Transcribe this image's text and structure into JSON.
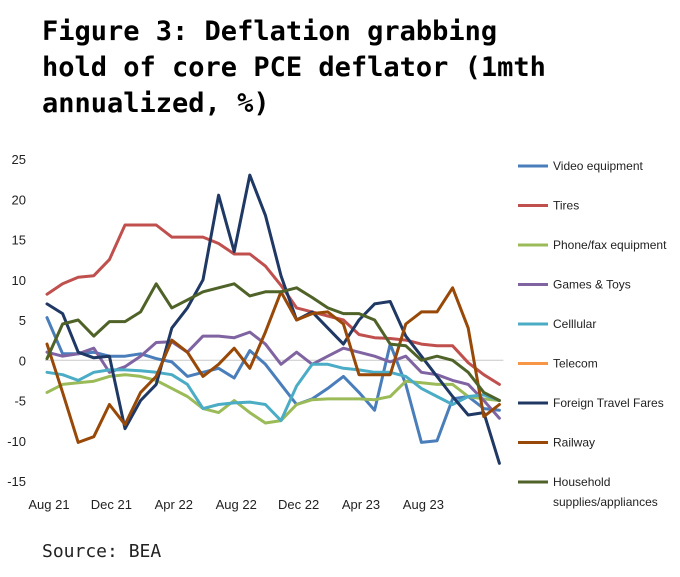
{
  "title": "Figure 3: Deflation grabbing\nhold of core PCE deflator (1mth\nannualized, %)",
  "source": "Source: BEA",
  "chart_data": {
    "type": "line",
    "title": "Figure 3: Deflation grabbing hold of core PCE deflator (1mth annualized, %)",
    "xlabel": "",
    "ylabel": "",
    "ylim": [
      -15,
      25
    ],
    "yticks": [
      25,
      20,
      15,
      10,
      5,
      0,
      -5,
      -10,
      -15
    ],
    "x_tick_labels": [
      "Aug 21",
      "Dec 21",
      "Apr 22",
      "Aug 22",
      "Dec 22",
      "Apr 23",
      "Aug 23"
    ],
    "x_tick_index": [
      0,
      4,
      8,
      12,
      16,
      20,
      24
    ],
    "n_points": 30,
    "grid": false,
    "legend_position": "right",
    "series": [
      {
        "name": "Video equipment",
        "color": "#4a7ebb",
        "values": [
          5.3,
          0.8,
          0.8,
          1.0,
          0.5,
          0.5,
          0.8,
          0.2,
          -0.2,
          -2.0,
          -1.5,
          -1.0,
          -2.2,
          1.2,
          -0.5,
          -3.0,
          -5.5,
          -4.8,
          -3.5,
          -2.0,
          -4.0,
          -6.2,
          2.0,
          -3.0,
          -10.2,
          -10.0,
          -4.8,
          -4.5,
          -6.0,
          -6.2
        ]
      },
      {
        "name": "Tires",
        "color": "#c0504d",
        "values": [
          8.2,
          9.5,
          10.3,
          10.5,
          12.5,
          16.8,
          16.8,
          16.8,
          15.3,
          15.3,
          15.3,
          14.5,
          13.2,
          13.2,
          11.7,
          9.3,
          6.5,
          6.0,
          5.5,
          5.0,
          3.2,
          2.8,
          2.7,
          2.5,
          2.0,
          1.8,
          1.8,
          -0.3,
          -1.8,
          -3.0
        ]
      },
      {
        "name": "Phone/fax equipment",
        "color": "#9bbb59",
        "values": [
          -4.0,
          -3.0,
          -2.8,
          -2.6,
          -2.0,
          -1.8,
          -2.0,
          -2.5,
          -3.5,
          -4.5,
          -6.0,
          -6.5,
          -5.0,
          -6.5,
          -7.8,
          -7.5,
          -5.5,
          -4.9,
          -4.8,
          -4.8,
          -4.8,
          -4.9,
          -4.5,
          -2.6,
          -2.8,
          -3.0,
          -3.0,
          -4.5,
          -4.8,
          -5.0
        ]
      },
      {
        "name": "Games & Toys",
        "color": "#8064a2",
        "values": [
          1.0,
          0.5,
          0.8,
          1.5,
          -1.5,
          -0.8,
          0.5,
          2.2,
          2.3,
          1.0,
          3.0,
          3.0,
          2.8,
          3.5,
          2.0,
          -0.5,
          1.0,
          -0.5,
          0.5,
          1.5,
          1.0,
          0.5,
          -0.2,
          0.5,
          -1.5,
          -1.8,
          -2.5,
          -3.0,
          -5.0,
          -7.2
        ]
      },
      {
        "name": "Celllular",
        "color": "#4bacc6",
        "values": [
          -1.5,
          -1.8,
          -2.5,
          -1.5,
          -1.2,
          -1.2,
          -1.3,
          -1.5,
          -1.8,
          -3.0,
          -6.0,
          -5.5,
          -5.3,
          -5.2,
          -5.5,
          -7.5,
          -3.2,
          -0.5,
          -0.5,
          -1.0,
          -1.2,
          -1.5,
          -1.5,
          -2.0,
          -3.5,
          -4.5,
          -5.5,
          -4.5,
          -4.3,
          -5.0
        ]
      },
      {
        "name": "Telecom",
        "color": "#f79646",
        "values": []
      },
      {
        "name": "Foreign Travel Fares",
        "color": "#1f3864",
        "values": [
          7.0,
          5.8,
          1.0,
          0.3,
          0.5,
          -8.5,
          -5.0,
          -3.0,
          4.0,
          6.5,
          10.0,
          20.5,
          13.5,
          23.0,
          18.0,
          10.5,
          5.0,
          6.0,
          4.0,
          2.0,
          5.0,
          7.0,
          7.3,
          3.0,
          0.5,
          -2.0,
          -4.5,
          -6.8,
          -6.5,
          -12.8
        ]
      },
      {
        "name": "Railway",
        "color": "#984807",
        "values": [
          2.0,
          -4.0,
          -10.2,
          -9.5,
          -5.5,
          -8.0,
          -4.0,
          -2.0,
          2.5,
          1.0,
          -2.0,
          -0.5,
          1.5,
          -1.0,
          3.5,
          8.5,
          5.0,
          5.8,
          6.0,
          4.5,
          -1.8,
          -1.8,
          -1.8,
          4.5,
          6.0,
          6.0,
          9.0,
          4.0,
          -7.0,
          -5.5
        ]
      },
      {
        "name": "Household\nsupplies/appliances",
        "color": "#4f6228",
        "values": [
          0.2,
          4.5,
          5.0,
          3.0,
          4.8,
          4.8,
          6.0,
          9.5,
          6.5,
          7.5,
          8.5,
          9.0,
          9.5,
          8.0,
          8.5,
          8.5,
          9.0,
          7.8,
          6.5,
          5.8,
          5.8,
          5.0,
          2.0,
          1.8,
          0.0,
          0.5,
          0.0,
          -1.5,
          -4.0,
          -5.0
        ]
      }
    ]
  }
}
